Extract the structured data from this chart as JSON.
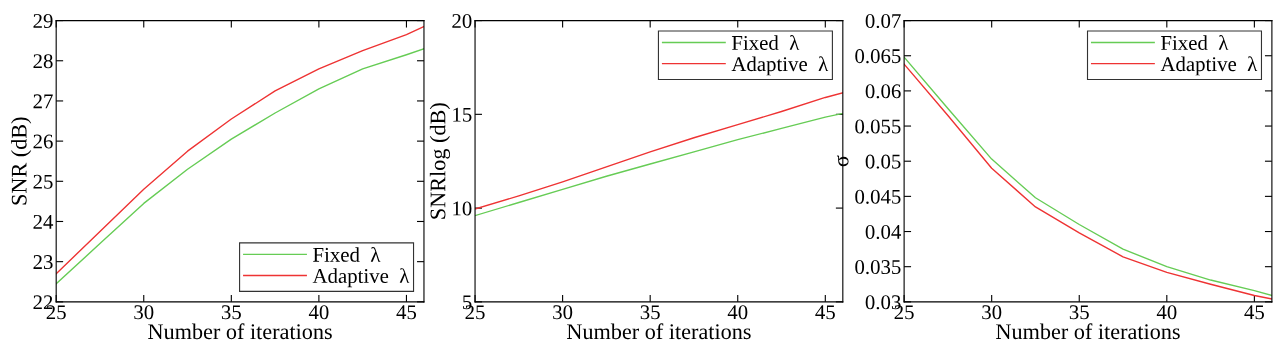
{
  "chart_data": [
    {
      "type": "line",
      "xlabel": "Number of iterations",
      "ylabel": "SNR (dB)",
      "x": [
        25,
        27.5,
        30,
        32.5,
        35,
        37.5,
        40,
        42.5,
        45,
        46
      ],
      "xlim": [
        25,
        46
      ],
      "xticks": [
        25,
        30,
        35,
        40,
        45
      ],
      "ylim": [
        22,
        29
      ],
      "yticks": [
        22,
        23,
        24,
        25,
        26,
        27,
        28,
        29
      ],
      "legend": "bottom right",
      "grid": false,
      "series": [
        {
          "name": "Fixed  λ",
          "color": "#66cc55",
          "values": [
            22.45,
            23.45,
            24.45,
            25.3,
            26.05,
            26.7,
            27.3,
            27.8,
            28.15,
            28.3
          ]
        },
        {
          "name": "Adaptive  λ",
          "color": "#ee3333",
          "values": [
            22.7,
            23.75,
            24.8,
            25.75,
            26.55,
            27.25,
            27.8,
            28.25,
            28.65,
            28.85
          ]
        }
      ]
    },
    {
      "type": "line",
      "xlabel": "Number of iterations",
      "ylabel": "SNRlog (dB)",
      "x": [
        25,
        27.5,
        30,
        32.5,
        35,
        37.5,
        40,
        42.5,
        45,
        46
      ],
      "xlim": [
        25,
        46
      ],
      "xticks": [
        25,
        30,
        35,
        40,
        45
      ],
      "ylim": [
        5,
        20
      ],
      "yticks": [
        5,
        10,
        15,
        20
      ],
      "legend": "top right",
      "grid": false,
      "series": [
        {
          "name": "Fixed  λ",
          "color": "#66cc55",
          "values": [
            9.6,
            10.3,
            11.0,
            11.7,
            12.35,
            13.0,
            13.65,
            14.25,
            14.85,
            15.05
          ]
        },
        {
          "name": "Adaptive  λ",
          "color": "#ee3333",
          "values": [
            9.95,
            10.65,
            11.4,
            12.2,
            13.0,
            13.75,
            14.45,
            15.15,
            15.9,
            16.15
          ]
        }
      ]
    },
    {
      "type": "line",
      "xlabel": "Number of iterations",
      "ylabel": "σ",
      "x": [
        25,
        27.5,
        30,
        32.5,
        35,
        37.5,
        40,
        42.5,
        45,
        46
      ],
      "xlim": [
        25,
        46
      ],
      "xticks": [
        25,
        30,
        35,
        40,
        45
      ],
      "ylim": [
        0.03,
        0.07
      ],
      "yticks": [
        0.03,
        0.035,
        0.04,
        0.045,
        0.05,
        0.055,
        0.06,
        0.065,
        0.07
      ],
      "legend": "top right",
      "grid": false,
      "series": [
        {
          "name": "Fixed  λ",
          "color": "#66cc55",
          "values": [
            0.0648,
            0.0575,
            0.0503,
            0.0448,
            0.041,
            0.0375,
            0.035,
            0.0331,
            0.0316,
            0.0309
          ]
        },
        {
          "name": "Adaptive  λ",
          "color": "#ee3333",
          "values": [
            0.0638,
            0.0565,
            0.049,
            0.0435,
            0.0398,
            0.0364,
            0.0342,
            0.0325,
            0.0309,
            0.0304
          ]
        }
      ]
    }
  ]
}
